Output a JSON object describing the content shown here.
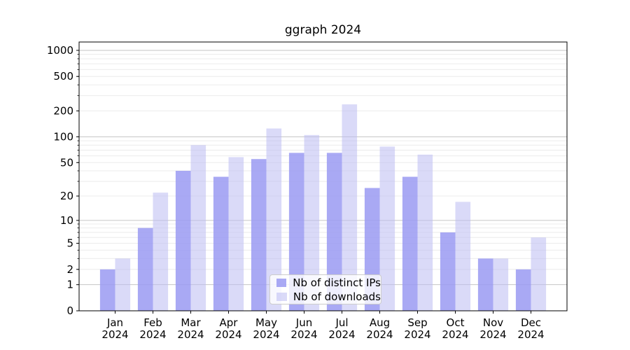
{
  "title": "ggraph 2024",
  "chart_data": {
    "type": "bar",
    "title": "ggraph 2024",
    "x_labels": [
      {
        "month": "Jan",
        "year": "2024"
      },
      {
        "month": "Feb",
        "year": "2024"
      },
      {
        "month": "Mar",
        "year": "2024"
      },
      {
        "month": "Apr",
        "year": "2024"
      },
      {
        "month": "May",
        "year": "2024"
      },
      {
        "month": "Jun",
        "year": "2024"
      },
      {
        "month": "Jul",
        "year": "2024"
      },
      {
        "month": "Aug",
        "year": "2024"
      },
      {
        "month": "Sep",
        "year": "2024"
      },
      {
        "month": "Oct",
        "year": "2024"
      },
      {
        "month": "Nov",
        "year": "2024"
      },
      {
        "month": "Dec",
        "year": "2024"
      }
    ],
    "series": [
      {
        "name": "Nb of distinct IPs",
        "color": "#9a9af2",
        "opacity": 0.85,
        "values": [
          2,
          8,
          40,
          34,
          55,
          65,
          65,
          25,
          34,
          7,
          3,
          2
        ]
      },
      {
        "name": "Nb of downloads",
        "color": "#bcbcf2",
        "opacity": 0.55,
        "values": [
          3,
          22,
          80,
          58,
          125,
          105,
          238,
          77,
          62,
          17,
          3,
          6
        ]
      }
    ],
    "y_scale": "log10(1+v)",
    "y_ticks": [
      0,
      1,
      2,
      5,
      10,
      20,
      50,
      100,
      200,
      500,
      1000
    ],
    "ylim": [
      0,
      1260
    ],
    "grid": "horizontal",
    "grid_major_color": "#c6c6c6",
    "grid_minor_color": "#ebebeb",
    "axis_color": "#000000",
    "legend_position": "lower center"
  }
}
